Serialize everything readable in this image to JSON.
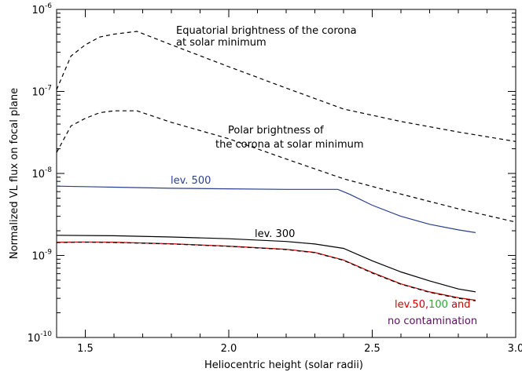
{
  "chart_data": {
    "type": "line",
    "xlabel": "Heliocentric height (solar radii)",
    "ylabel": "Normalized VL flux on focal plane",
    "xlim": [
      1.4,
      3.0
    ],
    "ylim": [
      1e-10,
      1e-06
    ],
    "yscale": "log",
    "grid": false,
    "legend": "none",
    "x_ticks": [
      "1.5",
      "2.0",
      "2.5",
      "3.0"
    ],
    "x_tick_values": [
      1.5,
      2.0,
      2.5,
      3.0
    ],
    "y_ticks": [
      {
        "mant": "10",
        "exp": "-10",
        "value": 1e-10
      },
      {
        "mant": "10",
        "exp": "-9",
        "value": 1e-09
      },
      {
        "mant": "10",
        "exp": "-8",
        "value": 1e-08
      },
      {
        "mant": "10",
        "exp": "-7",
        "value": 1e-07
      },
      {
        "mant": "10",
        "exp": "-6",
        "value": 1e-06
      }
    ],
    "series": [
      {
        "key": "equatorial",
        "color": "#000000",
        "dash": true,
        "x": [
          1.4,
          1.45,
          1.5,
          1.55,
          1.6,
          1.68,
          1.8,
          2.0,
          2.2,
          2.4,
          2.6,
          2.8,
          3.0
        ],
        "y": [
          1.05e-07,
          2.7e-07,
          3.7e-07,
          4.6e-07,
          5e-07,
          5.4e-07,
          3.7e-07,
          2e-07,
          1.1e-07,
          6.1e-08,
          4.3e-08,
          3.2e-08,
          2.45e-08
        ]
      },
      {
        "key": "polar",
        "color": "#000000",
        "dash": true,
        "x": [
          1.4,
          1.45,
          1.5,
          1.55,
          1.6,
          1.68,
          1.8,
          2.0,
          2.2,
          2.4,
          2.6,
          2.8,
          3.0
        ],
        "y": [
          1.8e-08,
          3.8e-08,
          4.7e-08,
          5.5e-08,
          5.8e-08,
          5.8e-08,
          4.2e-08,
          2.65e-08,
          1.5e-08,
          8.6e-09,
          5.6e-09,
          3.7e-09,
          2.55e-09
        ]
      },
      {
        "key": "lev500",
        "color": "#2b3f8f",
        "dash": false,
        "x": [
          1.4,
          1.6,
          1.8,
          2.0,
          2.2,
          2.38,
          2.42,
          2.5,
          2.6,
          2.7,
          2.8,
          2.86
        ],
        "y": [
          7e-09,
          6.8e-09,
          6.6e-09,
          6.5e-09,
          6.4e-09,
          6.4e-09,
          5.6e-09,
          4.1e-09,
          3e-09,
          2.4e-09,
          2.05e-09,
          1.9e-09
        ]
      },
      {
        "key": "lev300",
        "color": "#000000",
        "dash": false,
        "x": [
          1.4,
          1.6,
          1.8,
          2.0,
          2.2,
          2.3,
          2.4,
          2.5,
          2.6,
          2.7,
          2.8,
          2.86
        ],
        "y": [
          1.76e-09,
          1.74e-09,
          1.68e-09,
          1.6e-09,
          1.48e-09,
          1.38e-09,
          1.22e-09,
          8.6e-10,
          6.3e-10,
          4.9e-10,
          3.9e-10,
          3.6e-10
        ]
      },
      {
        "key": "lev50",
        "color": "#d00000",
        "dash": false,
        "x": [
          1.4,
          1.5,
          1.6,
          1.8,
          2.0,
          2.2,
          2.3,
          2.4,
          2.5,
          2.6,
          2.7,
          2.8,
          2.86
        ],
        "y": [
          1.45e-09,
          1.46e-09,
          1.45e-09,
          1.39e-09,
          1.3e-09,
          1.19e-09,
          1.09e-09,
          8.8e-10,
          6.2e-10,
          4.5e-10,
          3.6e-10,
          3.05e-10,
          2.85e-10
        ]
      },
      {
        "key": "nocontam",
        "color": "#000000",
        "dash": true,
        "x": [
          1.4,
          1.5,
          1.6,
          1.8,
          2.0,
          2.2,
          2.3,
          2.4,
          2.5,
          2.6,
          2.7,
          2.8,
          2.86
        ],
        "y": [
          1.44e-09,
          1.45e-09,
          1.44e-09,
          1.38e-09,
          1.29e-09,
          1.18e-09,
          1.08e-09,
          8.7e-10,
          6.1e-10,
          4.45e-10,
          3.55e-10,
          3e-10,
          2.8e-10
        ]
      }
    ],
    "annotations": {
      "equatorial_line1": "Equatorial brightness of the corona",
      "equatorial_line2": "at solar minimum",
      "polar_line1": "Polar brightness of",
      "polar_line2": "the corona at solar minimum",
      "lev500": "lev. 500",
      "lev300": "lev. 300",
      "lev50": "lev.50,",
      "lev100": "100",
      "and": " and",
      "nocontam": "no contamination"
    },
    "annotation_colors": {
      "lev500": "#2b3f8f",
      "lev300": "#000000",
      "lev50": "#d00000",
      "lev100": "#20b020",
      "and": "#d00000",
      "nocontam": "#5a1060"
    }
  }
}
